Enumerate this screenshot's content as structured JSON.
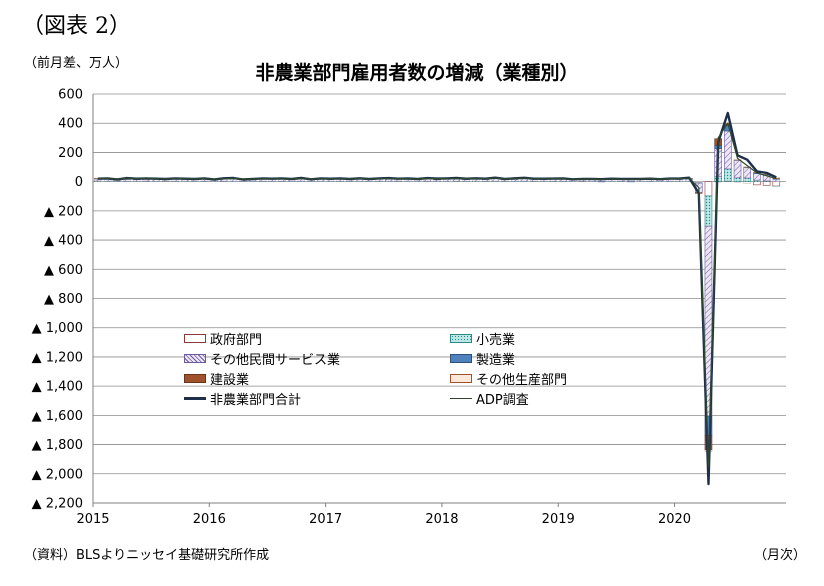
{
  "figure_label": "（図表 2）",
  "unit_label": "（前月差、万人）",
  "source_label": "（資料）BLSよりニッセイ基礎研究所作成",
  "x_unit_label": "（月次）",
  "chart_data": {
    "type": "bar",
    "stacked": true,
    "title": "非農業部門雇用者数の増減（業種別）",
    "ylim": [
      -2200,
      600
    ],
    "y_ticks": [
      600,
      400,
      200,
      0,
      -200,
      -400,
      -600,
      -800,
      -1000,
      -1200,
      -1400,
      -1600,
      -1800,
      -2000,
      -2200
    ],
    "y_tick_labels": [
      "600",
      "400",
      "200",
      "0",
      "▲ 200",
      "▲ 400",
      "▲ 600",
      "▲ 800",
      "▲ 1,000",
      "▲ 1,200",
      "▲ 1,400",
      "▲ 1,600",
      "▲ 1,800",
      "▲ 2,000",
      "▲ 2,200"
    ],
    "x_tick_labels": [
      "2015",
      "2016",
      "2017",
      "2018",
      "2019",
      "2020"
    ],
    "x_tick_month_index": [
      0,
      12,
      24,
      36,
      48,
      60
    ],
    "month_count": 71,
    "grid": true,
    "legend_position": "center",
    "series": [
      {
        "name": "政府部門",
        "kind": "bar",
        "color": "#ffffff",
        "edge": "#8b3a3a",
        "pattern": "none",
        "values": [
          2,
          1,
          2,
          1,
          1,
          2,
          1,
          2,
          2,
          1,
          1,
          2,
          1,
          2,
          1,
          2,
          1,
          2,
          1,
          2,
          1,
          1,
          2,
          1,
          1,
          1,
          2,
          1,
          1,
          2,
          1,
          2,
          1,
          1,
          2,
          1,
          1,
          2,
          1,
          1,
          2,
          1,
          2,
          1,
          1,
          2,
          1,
          2,
          2,
          1,
          2,
          1,
          2,
          1,
          2,
          1,
          1,
          2,
          1,
          2,
          1,
          1,
          -5,
          -98,
          -2,
          3,
          -3,
          -15,
          -22,
          -25,
          -30
        ]
      },
      {
        "name": "小売業",
        "kind": "bar",
        "color": "#c8ecec",
        "edge": "#2a8a8a",
        "pattern": "dots",
        "values": [
          3,
          2,
          1,
          2,
          1,
          2,
          1,
          2,
          1,
          1,
          2,
          1,
          1,
          2,
          1,
          2,
          1,
          1,
          2,
          1,
          1,
          2,
          1,
          1,
          1,
          2,
          1,
          1,
          2,
          1,
          1,
          2,
          1,
          1,
          2,
          1,
          1,
          1,
          2,
          1,
          1,
          2,
          1,
          1,
          2,
          1,
          1,
          1,
          1,
          1,
          2,
          1,
          1,
          1,
          1,
          1,
          1,
          1,
          1,
          1,
          1,
          1,
          -5,
          -207,
          37,
          84,
          26,
          25,
          10,
          5,
          -3
        ]
      },
      {
        "name": "その他民間サービス業",
        "kind": "bar",
        "color": "#e6e0f2",
        "edge": "#6b5a9e",
        "pattern": "diag",
        "values": [
          14,
          16,
          10,
          13,
          12,
          18,
          15,
          11,
          17,
          14,
          12,
          16,
          11,
          15,
          18,
          10,
          13,
          17,
          14,
          16,
          12,
          18,
          11,
          15,
          13,
          14,
          11,
          16,
          12,
          17,
          15,
          13,
          14,
          12,
          16,
          11,
          14,
          16,
          12,
          15,
          13,
          17,
          11,
          14,
          16,
          13,
          12,
          15,
          15,
          12,
          13,
          14,
          11,
          16,
          14,
          12,
          15,
          13,
          11,
          14,
          14,
          16,
          -65,
          -1300,
          190,
          260,
          120,
          70,
          45,
          40,
          15
        ]
      },
      {
        "name": "製造業",
        "kind": "bar",
        "color": "#4f81bd",
        "edge": "#2c4f7c",
        "pattern": "none",
        "values": [
          1,
          1,
          0,
          1,
          1,
          0,
          1,
          1,
          0,
          1,
          0,
          1,
          0,
          1,
          1,
          0,
          1,
          0,
          1,
          1,
          0,
          1,
          0,
          1,
          1,
          0,
          1,
          1,
          0,
          1,
          1,
          0,
          1,
          1,
          0,
          1,
          2,
          2,
          1,
          2,
          1,
          2,
          2,
          1,
          2,
          1,
          2,
          1,
          1,
          0,
          1,
          0,
          -1,
          0,
          1,
          -1,
          0,
          1,
          0,
          1,
          1,
          1,
          -2,
          -133,
          22,
          36,
          2,
          3,
          6,
          4,
          4
        ]
      },
      {
        "name": "建設業",
        "kind": "bar",
        "color": "#a0522d",
        "edge": "#6b3416",
        "pattern": "none",
        "values": [
          3,
          2,
          1,
          2,
          3,
          1,
          2,
          2,
          1,
          3,
          2,
          2,
          1,
          2,
          3,
          2,
          1,
          2,
          2,
          1,
          2,
          3,
          1,
          2,
          2,
          3,
          1,
          2,
          2,
          1,
          3,
          2,
          2,
          1,
          2,
          3,
          3,
          2,
          3,
          2,
          2,
          3,
          1,
          2,
          3,
          2,
          2,
          1,
          2,
          1,
          2,
          1,
          2,
          1,
          1,
          2,
          1,
          2,
          1,
          2,
          2,
          4,
          -4,
          -99,
          46,
          16,
          2,
          2,
          3,
          2,
          5
        ]
      },
      {
        "name": "その他生産部門",
        "kind": "bar",
        "color": "#fde9d9",
        "edge": "#a0522d",
        "pattern": "none",
        "values": [
          1,
          0,
          1,
          0,
          1,
          0,
          1,
          0,
          1,
          0,
          0,
          1,
          0,
          1,
          0,
          0,
          1,
          0,
          1,
          0,
          0,
          1,
          0,
          0,
          1,
          0,
          0,
          1,
          0,
          0,
          1,
          0,
          1,
          0,
          0,
          1,
          0,
          1,
          0,
          1,
          0,
          1,
          0,
          1,
          0,
          1,
          0,
          1,
          0,
          1,
          0,
          0,
          1,
          0,
          0,
          1,
          0,
          0,
          1,
          0,
          0,
          1,
          -1,
          -12,
          1,
          5,
          1,
          1,
          1,
          1,
          2
        ]
      },
      {
        "name": "非農業部門合計",
        "kind": "line",
        "color": "#1f2f4a",
        "width": 2.4,
        "values": [
          20,
          22,
          15,
          24,
          20,
          22,
          20,
          18,
          22,
          20,
          18,
          22,
          15,
          23,
          25,
          15,
          18,
          22,
          20,
          22,
          18,
          25,
          16,
          22,
          20,
          22,
          18,
          23,
          18,
          22,
          24,
          20,
          22,
          18,
          24,
          21,
          22,
          25,
          20,
          23,
          20,
          27,
          18,
          23,
          26,
          20,
          20,
          21,
          22,
          16,
          19,
          19,
          17,
          20,
          19,
          18,
          19,
          20,
          17,
          21,
          21,
          27,
          -80,
          -2070,
          270,
          470,
          180,
          150,
          70,
          60,
          30
        ]
      },
      {
        "name": "ADP調査",
        "kind": "line",
        "color": "#2e4a2e",
        "width": 1.2,
        "values": [
          22,
          20,
          18,
          22,
          21,
          24,
          19,
          20,
          21,
          22,
          19,
          20,
          17,
          20,
          22,
          18,
          19,
          21,
          20,
          19,
          18,
          22,
          18,
          20,
          21,
          20,
          19,
          22,
          19,
          20,
          23,
          21,
          20,
          19,
          22,
          20,
          21,
          23,
          22,
          21,
          20,
          24,
          19,
          22,
          24,
          21,
          20,
          22,
          20,
          17,
          18,
          19,
          16,
          19,
          18,
          17,
          18,
          20,
          18,
          20,
          22,
          24,
          -40,
          -1950,
          300,
          400,
          160,
          110,
          60,
          40,
          20
        ]
      }
    ]
  }
}
